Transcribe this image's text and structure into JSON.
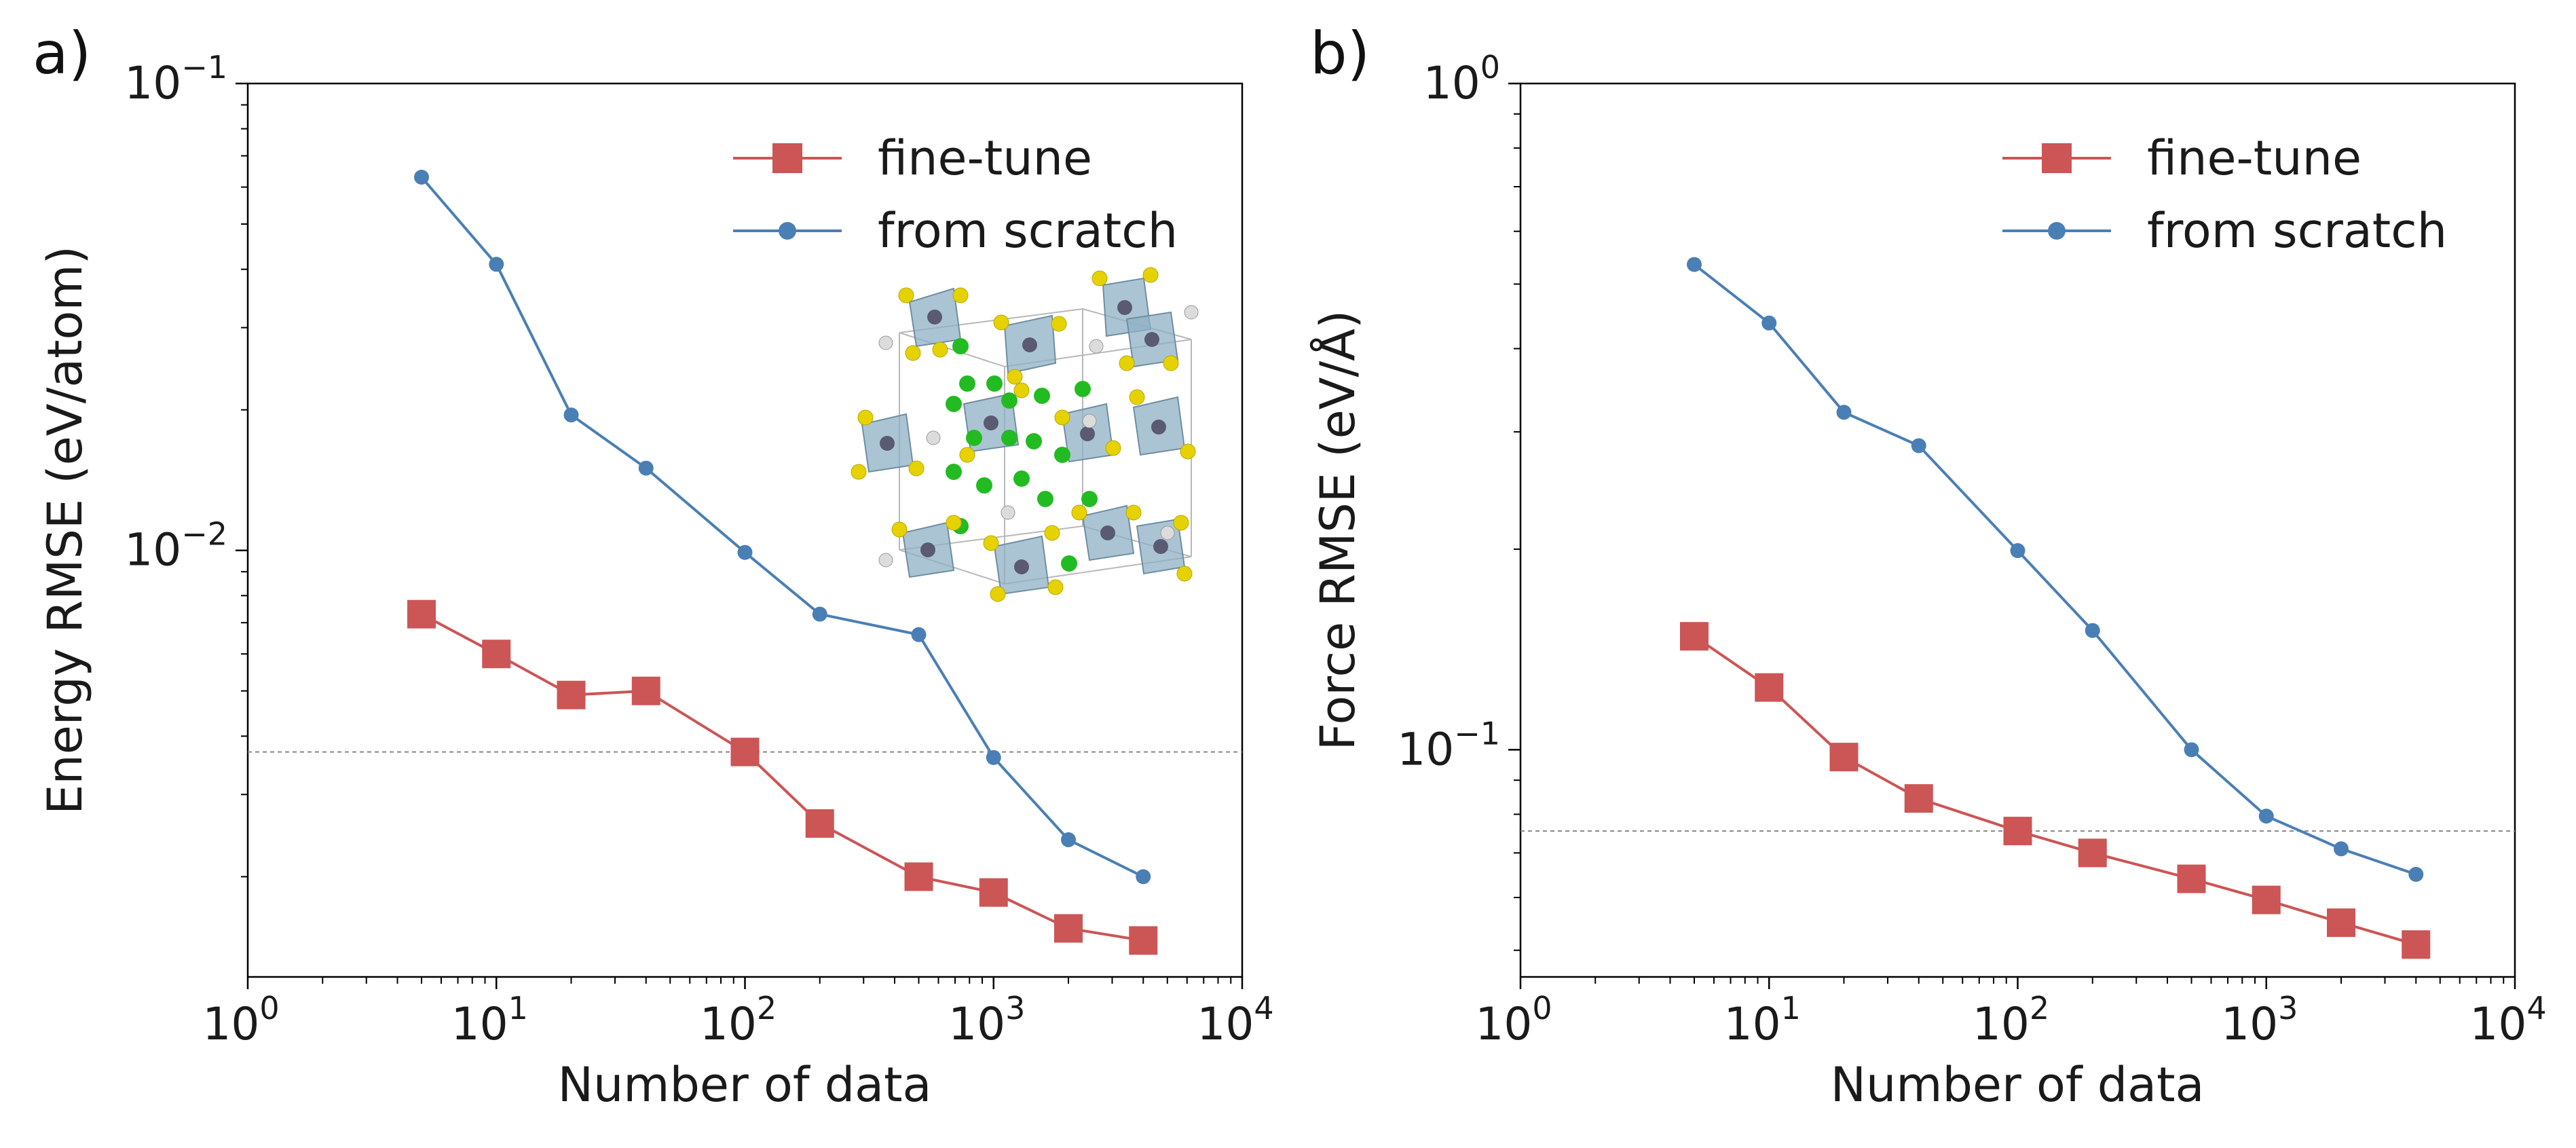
{
  "chart_data": [
    {
      "type": "line",
      "panel_label": "a)",
      "xlabel": "Number of data",
      "ylabel": "Energy RMSE (eV/atom)",
      "xscale": "log",
      "yscale": "log",
      "xlim": [
        1,
        10000
      ],
      "ylim": [
        0.00122,
        0.1
      ],
      "xticks": [
        {
          "base": "10",
          "exp": "0",
          "value": 1
        },
        {
          "base": "10",
          "exp": "1",
          "value": 10
        },
        {
          "base": "10",
          "exp": "2",
          "value": 100
        },
        {
          "base": "10",
          "exp": "3",
          "value": 1000
        },
        {
          "base": "10",
          "exp": "4",
          "value": 10000
        }
      ],
      "yticks": [
        {
          "base": "10",
          "exp": "−1",
          "value": 0.1
        },
        {
          "base": "10",
          "exp": "−2",
          "value": 0.01
        }
      ],
      "reference_line": 0.0037,
      "legend_position": "top-right",
      "series": [
        {
          "name": "fine-tune",
          "color": "#cc5555",
          "marker": "square",
          "x": [
            5,
            10,
            20,
            40,
            100,
            200,
            500,
            1000,
            2000,
            4000
          ],
          "y": [
            0.0073,
            0.006,
            0.0049,
            0.005,
            0.0037,
            0.0026,
            0.002,
            0.00185,
            0.00155,
            0.00146
          ]
        },
        {
          "name": "from scratch",
          "color": "#4a7fb5",
          "marker": "circle",
          "x": [
            5,
            10,
            20,
            40,
            100,
            200,
            500,
            1000,
            2000,
            4000
          ],
          "y": [
            0.063,
            0.041,
            0.0195,
            0.015,
            0.0099,
            0.0073,
            0.0066,
            0.0036,
            0.0024,
            0.002
          ]
        }
      ]
    },
    {
      "type": "line",
      "panel_label": "b)",
      "xlabel": "Number of data",
      "ylabel": "Force RMSE (eV/Å)",
      "xscale": "log",
      "yscale": "log",
      "xlim": [
        1,
        10000
      ],
      "ylim": [
        0.0456,
        1.0
      ],
      "xticks": [
        {
          "base": "10",
          "exp": "0",
          "value": 1
        },
        {
          "base": "10",
          "exp": "1",
          "value": 10
        },
        {
          "base": "10",
          "exp": "2",
          "value": 100
        },
        {
          "base": "10",
          "exp": "3",
          "value": 1000
        },
        {
          "base": "10",
          "exp": "4",
          "value": 10000
        }
      ],
      "yticks": [
        {
          "base": "10",
          "exp": "0",
          "value": 1.0
        },
        {
          "base": "10",
          "exp": "−1",
          "value": 0.1
        }
      ],
      "reference_line": 0.0755,
      "legend_position": "top-right",
      "series": [
        {
          "name": "fine-tune",
          "color": "#cc5555",
          "marker": "square",
          "x": [
            5,
            10,
            20,
            40,
            100,
            200,
            500,
            1000,
            2000,
            4000
          ],
          "y": [
            0.148,
            0.124,
            0.0975,
            0.0845,
            0.0755,
            0.07,
            0.064,
            0.0595,
            0.055,
            0.051
          ]
        },
        {
          "name": "from scratch",
          "color": "#4a7fb5",
          "marker": "circle",
          "x": [
            5,
            10,
            20,
            40,
            100,
            200,
            500,
            1000,
            2000,
            4000
          ],
          "y": [
            0.535,
            0.437,
            0.321,
            0.286,
            0.199,
            0.151,
            0.1,
            0.0795,
            0.071,
            0.065
          ]
        }
      ]
    }
  ]
}
